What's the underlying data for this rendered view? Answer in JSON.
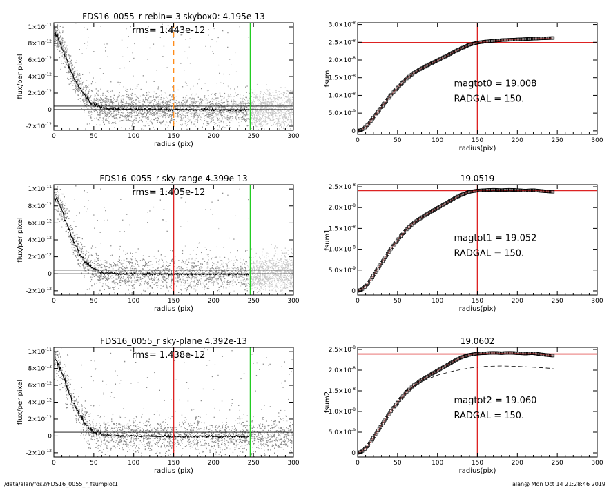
{
  "footer": {
    "path": "/data/alan/fds2/FDS16_0055_r_fsumplot1",
    "stamp": "alan@  Mon Oct 14 21:28:46 2019"
  },
  "colors": {
    "red": "#dd2222",
    "green": "#22cc22",
    "orange": "#ff8c1a",
    "scatter": "#8a8a8a",
    "scatter_light": "#c8c8c8",
    "line": "#000000"
  },
  "chart_data": [
    {
      "id": "left1",
      "type": "scatter",
      "title": "FDS16_0055_r rebin= 3    skybox0:  4.195e-13",
      "annotation": "rms= 1.443e-12",
      "xlabel": "radius (pix)",
      "ylabel": "flux/per pixel",
      "xlim": [
        0,
        300
      ],
      "ylim": [
        -2.5e-12,
        1.05e-11
      ],
      "xticks": [
        "0",
        "50",
        "100",
        "150",
        "200",
        "250",
        "300"
      ],
      "yticks": [
        {
          "v": 1e-11,
          "m": "1×10",
          "e": "-11"
        },
        {
          "v": 8e-12,
          "m": "8×10",
          "e": "-12"
        },
        {
          "v": 6e-12,
          "m": "6×10",
          "e": "-12"
        },
        {
          "v": 4e-12,
          "m": "4×10",
          "e": "-12"
        },
        {
          "v": 2e-12,
          "m": "2×10",
          "e": "-12"
        },
        {
          "v": 0,
          "m": "0",
          "e": ""
        },
        {
          "v": -2e-12,
          "m": "-2×10",
          "e": "-12"
        }
      ],
      "hlines": [
        4.195e-13,
        0
      ],
      "vlines": [
        {
          "x": 150,
          "color": "orange",
          "dash": true
        },
        {
          "x": 246,
          "color": "green",
          "dash": false
        }
      ],
      "profile": [
        [
          1,
          9.4e-12
        ],
        [
          5,
          8.7e-12
        ],
        [
          10,
          7.6e-12
        ],
        [
          15,
          6.3e-12
        ],
        [
          20,
          5e-12
        ],
        [
          25,
          3.9e-12
        ],
        [
          30,
          2.9e-12
        ],
        [
          35,
          2.1e-12
        ],
        [
          40,
          1.5e-12
        ],
        [
          45,
          1e-12
        ],
        [
          50,
          6.5e-13
        ],
        [
          55,
          4e-13
        ],
        [
          60,
          2.5e-13
        ],
        [
          65,
          1.8e-13
        ],
        [
          70,
          1.2e-13
        ],
        [
          80,
          8e-14
        ],
        [
          100,
          3e-14
        ],
        [
          150,
          0
        ],
        [
          200,
          -3e-14
        ],
        [
          245,
          -3e-14
        ]
      ],
      "noise_end": 245,
      "light_band": true
    },
    {
      "id": "right1",
      "type": "scatter",
      "title": "",
      "xlabel": "radius(pix)",
      "ylabel": "fsum",
      "xlim": [
        0,
        300
      ],
      "ylim": [
        -1e-09,
        3.05e-08
      ],
      "xticks": [
        "0",
        "50",
        "100",
        "150",
        "200",
        "250",
        "300"
      ],
      "yticks": [
        {
          "v": 3e-08,
          "m": "3.0×10",
          "e": "-8"
        },
        {
          "v": 2.5e-08,
          "m": "2.5×10",
          "e": "-8"
        },
        {
          "v": 2e-08,
          "m": "2.0×10",
          "e": "-8"
        },
        {
          "v": 1.5e-08,
          "m": "1.5×10",
          "e": "-8"
        },
        {
          "v": 1e-08,
          "m": "1.0×10",
          "e": "-8"
        },
        {
          "v": 5e-09,
          "m": "5.0×10",
          "e": "-9"
        },
        {
          "v": 0,
          "m": "0",
          "e": ""
        }
      ],
      "hline": 2.49e-08,
      "vline": 150,
      "curve": [
        [
          0,
          0
        ],
        [
          5,
          3e-10
        ],
        [
          10,
          1.1e-09
        ],
        [
          15,
          2.3e-09
        ],
        [
          20,
          3.8e-09
        ],
        [
          30,
          6.7e-09
        ],
        [
          40,
          9.6e-09
        ],
        [
          50,
          1.22e-08
        ],
        [
          60,
          1.45e-08
        ],
        [
          70,
          1.63e-08
        ],
        [
          80,
          1.76e-08
        ],
        [
          90,
          1.88e-08
        ],
        [
          100,
          1.99e-08
        ],
        [
          110,
          2.1e-08
        ],
        [
          120,
          2.22e-08
        ],
        [
          130,
          2.33e-08
        ],
        [
          140,
          2.43e-08
        ],
        [
          150,
          2.49e-08
        ],
        [
          160,
          2.52e-08
        ],
        [
          170,
          2.54e-08
        ],
        [
          180,
          2.56e-08
        ],
        [
          190,
          2.57e-08
        ],
        [
          200,
          2.58e-08
        ],
        [
          210,
          2.59e-08
        ],
        [
          220,
          2.6e-08
        ],
        [
          230,
          2.61e-08
        ],
        [
          245,
          2.62e-08
        ]
      ],
      "curve_end": 245,
      "text": [
        "magtot0 =  19.008",
        "RADGAL =    150."
      ],
      "text_at": [
        105,
        1.25e-08
      ]
    },
    {
      "id": "left2",
      "type": "scatter",
      "title": "FDS16_0055_r sky-range  4.399e-13",
      "annotation": "rms= 1.405e-12",
      "xlabel": "radius (pix)",
      "ylabel": "flux/per pixel",
      "xlim": [
        0,
        300
      ],
      "ylim": [
        -2.5e-12,
        1.05e-11
      ],
      "xticks": [
        "0",
        "50",
        "100",
        "150",
        "200",
        "250",
        "300"
      ],
      "yticks": [
        {
          "v": 1e-11,
          "m": "1×10",
          "e": "-11"
        },
        {
          "v": 8e-12,
          "m": "8×10",
          "e": "-12"
        },
        {
          "v": 6e-12,
          "m": "6×10",
          "e": "-12"
        },
        {
          "v": 4e-12,
          "m": "4×10",
          "e": "-12"
        },
        {
          "v": 2e-12,
          "m": "2×10",
          "e": "-12"
        },
        {
          "v": 0,
          "m": "0",
          "e": ""
        },
        {
          "v": -2e-12,
          "m": "-2×10",
          "e": "-12"
        }
      ],
      "hlines": [
        4.399e-13,
        0
      ],
      "vlines": [
        {
          "x": 150,
          "color": "red",
          "dash": false
        },
        {
          "x": 246,
          "color": "green",
          "dash": false
        }
      ],
      "profile": [
        [
          1,
          9.2e-12
        ],
        [
          5,
          8.6e-12
        ],
        [
          10,
          7.5e-12
        ],
        [
          15,
          6.2e-12
        ],
        [
          20,
          4.9e-12
        ],
        [
          25,
          3.8e-12
        ],
        [
          30,
          2.8e-12
        ],
        [
          35,
          2e-12
        ],
        [
          40,
          1.4e-12
        ],
        [
          45,
          9e-13
        ],
        [
          50,
          5.5e-13
        ],
        [
          55,
          3e-13
        ],
        [
          60,
          1.5e-13
        ],
        [
          70,
          5e-14
        ],
        [
          100,
          -2e-14
        ],
        [
          150,
          -5e-14
        ],
        [
          200,
          -6e-14
        ],
        [
          245,
          -6e-14
        ]
      ],
      "noise_end": 245,
      "light_band": true
    },
    {
      "id": "right2",
      "type": "scatter",
      "title": "19.0519",
      "xlabel": "radius(pix)",
      "ylabel": "fsum1",
      "xlim": [
        0,
        300
      ],
      "ylim": [
        -1e-09,
        2.55e-08
      ],
      "xticks": [
        "0",
        "50",
        "100",
        "150",
        "200",
        "250",
        "300"
      ],
      "yticks": [
        {
          "v": 2.5e-08,
          "m": "2.5×10",
          "e": "-8"
        },
        {
          "v": 2e-08,
          "m": "2.0×10",
          "e": "-8"
        },
        {
          "v": 1.5e-08,
          "m": "1.5×10",
          "e": "-8"
        },
        {
          "v": 1e-08,
          "m": "1.0×10",
          "e": "-8"
        },
        {
          "v": 5e-09,
          "m": "5.0×10",
          "e": "-9"
        },
        {
          "v": 0,
          "m": "0",
          "e": ""
        }
      ],
      "hline": 2.41e-08,
      "vline": 150,
      "curve": [
        [
          0,
          0
        ],
        [
          5,
          3e-10
        ],
        [
          10,
          1.1e-09
        ],
        [
          15,
          2.3e-09
        ],
        [
          20,
          3.8e-09
        ],
        [
          30,
          6.7e-09
        ],
        [
          40,
          9.6e-09
        ],
        [
          50,
          1.22e-08
        ],
        [
          60,
          1.45e-08
        ],
        [
          70,
          1.63e-08
        ],
        [
          80,
          1.76e-08
        ],
        [
          90,
          1.88e-08
        ],
        [
          100,
          1.99e-08
        ],
        [
          110,
          2.1e-08
        ],
        [
          120,
          2.21e-08
        ],
        [
          130,
          2.31e-08
        ],
        [
          140,
          2.38e-08
        ],
        [
          150,
          2.41e-08
        ],
        [
          160,
          2.42e-08
        ],
        [
          170,
          2.43e-08
        ],
        [
          180,
          2.42e-08
        ],
        [
          190,
          2.43e-08
        ],
        [
          200,
          2.42e-08
        ],
        [
          210,
          2.41e-08
        ],
        [
          220,
          2.42e-08
        ],
        [
          230,
          2.4e-08
        ],
        [
          245,
          2.38e-08
        ]
      ],
      "curve_end": 245,
      "text": [
        "magtot1 =  19.052",
        "RADGAL =    150."
      ],
      "text_at": [
        105,
        1.2e-08
      ]
    },
    {
      "id": "left3",
      "type": "scatter",
      "title": "FDS16_0055_r sky-plane  4.392e-13",
      "annotation": "rms= 1.438e-12",
      "xlabel": "radius (pix)",
      "ylabel": "flux/per pixel",
      "xlim": [
        0,
        300
      ],
      "ylim": [
        -2.5e-12,
        1.05e-11
      ],
      "xticks": [
        "0",
        "50",
        "100",
        "150",
        "200",
        "250",
        "300"
      ],
      "yticks": [
        {
          "v": 1e-11,
          "m": "1×10",
          "e": "-11"
        },
        {
          "v": 8e-12,
          "m": "8×10",
          "e": "-12"
        },
        {
          "v": 6e-12,
          "m": "6×10",
          "e": "-12"
        },
        {
          "v": 4e-12,
          "m": "4×10",
          "e": "-12"
        },
        {
          "v": 2e-12,
          "m": "2×10",
          "e": "-12"
        },
        {
          "v": 0,
          "m": "0",
          "e": ""
        },
        {
          "v": -2e-12,
          "m": "-2×10",
          "e": "-12"
        }
      ],
      "hlines": [
        4.392e-13,
        0
      ],
      "vlines": [
        {
          "x": 150,
          "color": "red",
          "dash": false
        },
        {
          "x": 246,
          "color": "green",
          "dash": false
        }
      ],
      "profile": [
        [
          1,
          9.3e-12
        ],
        [
          5,
          8.6e-12
        ],
        [
          10,
          7.5e-12
        ],
        [
          15,
          6.2e-12
        ],
        [
          20,
          4.9e-12
        ],
        [
          25,
          3.8e-12
        ],
        [
          30,
          2.8e-12
        ],
        [
          35,
          2e-12
        ],
        [
          40,
          1.4e-12
        ],
        [
          45,
          9e-13
        ],
        [
          50,
          5.5e-13
        ],
        [
          55,
          3e-13
        ],
        [
          60,
          1.5e-13
        ],
        [
          70,
          5e-14
        ],
        [
          100,
          -2e-14
        ],
        [
          150,
          -5e-14
        ],
        [
          200,
          -6e-14
        ],
        [
          245,
          -6e-14
        ]
      ],
      "noise_end": 300,
      "light_band": false
    },
    {
      "id": "right3",
      "type": "scatter",
      "title": "19.0602",
      "xlabel": "radius(pix)",
      "ylabel": "fsum2",
      "xlim": [
        0,
        300
      ],
      "ylim": [
        -1e-09,
        2.55e-08
      ],
      "xticks": [
        "0",
        "50",
        "100",
        "150",
        "200",
        "250",
        "300"
      ],
      "yticks": [
        {
          "v": 2.5e-08,
          "m": "2.5×10",
          "e": "-8"
        },
        {
          "v": 2e-08,
          "m": "2.0×10",
          "e": "-8"
        },
        {
          "v": 1.5e-08,
          "m": "1.5×10",
          "e": "-8"
        },
        {
          "v": 1e-08,
          "m": "1.0×10",
          "e": "-8"
        },
        {
          "v": 5e-09,
          "m": "5.0×10",
          "e": "-9"
        },
        {
          "v": 0,
          "m": "0",
          "e": ""
        }
      ],
      "hline": 2.39e-08,
      "vline": 150,
      "curve": [
        [
          0,
          0
        ],
        [
          5,
          3e-10
        ],
        [
          10,
          1.1e-09
        ],
        [
          15,
          2.3e-09
        ],
        [
          20,
          3.8e-09
        ],
        [
          30,
          6.7e-09
        ],
        [
          40,
          9.6e-09
        ],
        [
          50,
          1.22e-08
        ],
        [
          60,
          1.45e-08
        ],
        [
          70,
          1.63e-08
        ],
        [
          80,
          1.76e-08
        ],
        [
          90,
          1.88e-08
        ],
        [
          100,
          1.99e-08
        ],
        [
          110,
          2.1e-08
        ],
        [
          120,
          2.21e-08
        ],
        [
          130,
          2.31e-08
        ],
        [
          140,
          2.37e-08
        ],
        [
          150,
          2.4e-08
        ],
        [
          160,
          2.41e-08
        ],
        [
          170,
          2.42e-08
        ],
        [
          180,
          2.41e-08
        ],
        [
          190,
          2.42e-08
        ],
        [
          200,
          2.41e-08
        ],
        [
          210,
          2.4e-08
        ],
        [
          220,
          2.41e-08
        ],
        [
          230,
          2.38e-08
        ],
        [
          245,
          2.35e-08
        ]
      ],
      "curve_end": 245,
      "dashed": [
        [
          60,
          1.5e-08
        ],
        [
          80,
          1.72e-08
        ],
        [
          100,
          1.88e-08
        ],
        [
          120,
          1.98e-08
        ],
        [
          140,
          2.05e-08
        ],
        [
          160,
          2.09e-08
        ],
        [
          180,
          2.1e-08
        ],
        [
          200,
          2.09e-08
        ],
        [
          220,
          2.07e-08
        ],
        [
          245,
          2.04e-08
        ]
      ],
      "text": [
        "magtot2 =  19.060",
        "RADGAL =    150."
      ],
      "text_at": [
        105,
        1.2e-08
      ]
    }
  ]
}
